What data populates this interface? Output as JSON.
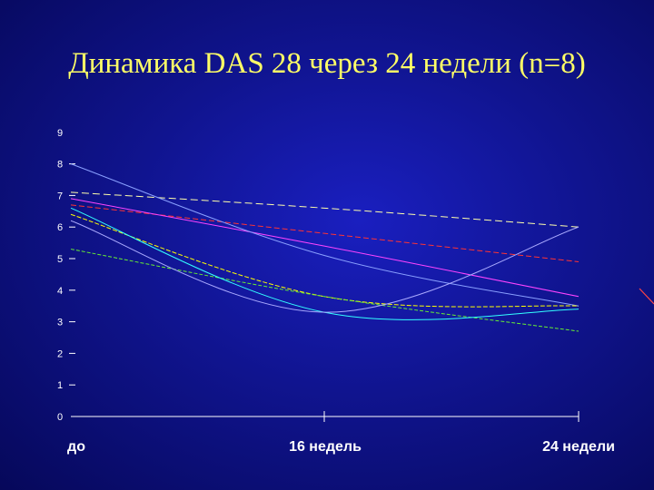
{
  "title": "Динамика DAS 28 через 24 недели (n=8)",
  "chart_data": {
    "type": "line",
    "title": "Динамика DAS 28 через 24 недели (n=8)",
    "categories": [
      "до",
      "16 недель",
      "24 недели"
    ],
    "y_ticks": [
      "0",
      "1",
      "2",
      "3",
      "4",
      "5",
      "6",
      "7",
      "8",
      "9"
    ],
    "ylim": [
      0,
      9
    ],
    "grid": false,
    "legend": "none",
    "series": [
      {
        "values": [
          7.1,
          6.6,
          6.0
        ],
        "color": "#ffffaa",
        "dash": "8,4"
      },
      {
        "values": [
          6.7,
          5.8,
          4.9
        ],
        "color": "#ff3333",
        "dash": "6,3"
      },
      {
        "values": [
          6.9,
          5.4,
          3.8
        ],
        "color": "#ff44ff",
        "dash": ""
      },
      {
        "values": [
          8.0,
          5.1,
          3.5
        ],
        "color": "#8aa0ff",
        "dash": ""
      },
      {
        "values": [
          6.4,
          3.8,
          3.5
        ],
        "color": "#ffff00",
        "dash": "5,2"
      },
      {
        "values": [
          5.3,
          3.8,
          2.7
        ],
        "color": "#66ee33",
        "dash": "4,2"
      },
      {
        "values": [
          6.6,
          3.3,
          3.4
        ],
        "color": "#33ffff",
        "dash": ""
      },
      {
        "values": [
          6.2,
          3.3,
          6.0
        ],
        "color": "#aaaaff",
        "dash": ""
      }
    ]
  }
}
